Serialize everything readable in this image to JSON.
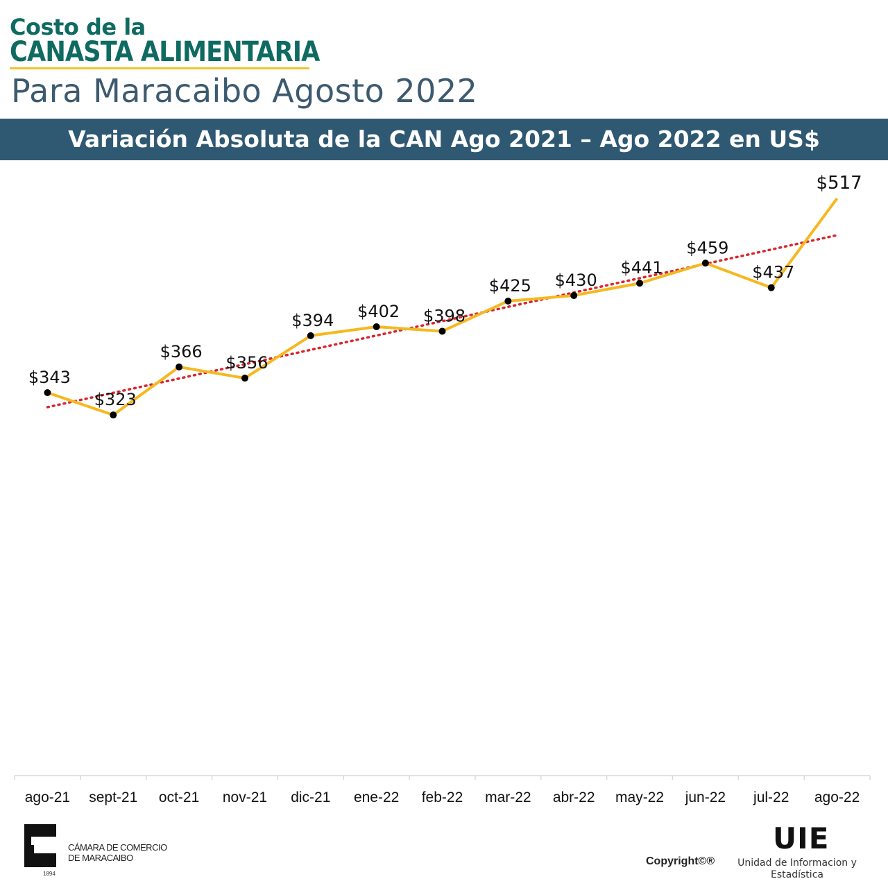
{
  "header": {
    "line1": "Costo de la",
    "line2": "CANASTA ALIMENTARIA",
    "subtitle": "Para Maracaibo Agosto 2022"
  },
  "banner": {
    "title": "Variación Absoluta de la CAN Ago 2021 – Ago 2022 en US$"
  },
  "chart_data": {
    "type": "line",
    "categories": [
      "ago-21",
      "sept-21",
      "oct-21",
      "nov-21",
      "dic-21",
      "ene-22",
      "feb-22",
      "mar-22",
      "abr-22",
      "may-22",
      "jun-22",
      "jul-22",
      "ago-22"
    ],
    "series": [
      {
        "values": [
          343,
          323,
          366,
          356,
          394,
          402,
          398,
          425,
          430,
          441,
          459,
          437,
          517
        ]
      }
    ],
    "data_labels": [
      "$343",
      "$323",
      "$366",
      "$356",
      "$394",
      "$402",
      "$398",
      "$425",
      "$430",
      "$441",
      "$459",
      "$437",
      "$517"
    ],
    "trendline": {
      "type": "linear",
      "style": "dotted"
    },
    "ylim": [
      0,
      530
    ],
    "grid": false,
    "legend": "none",
    "colors": {
      "line": "#f5b820",
      "marker": "#000000",
      "trend": "#d9262b",
      "axis": "#d9d9d9"
    }
  },
  "footer": {
    "logo_text_1": "CÁMARA DE COMERCIO",
    "logo_text_2": "DE MARACAIBO",
    "logo_year": "1894",
    "copyright": "Copyright©®",
    "uie": "UIE",
    "uie_desc_1": "Unidad de Informacion y",
    "uie_desc_2": "Estadística"
  }
}
